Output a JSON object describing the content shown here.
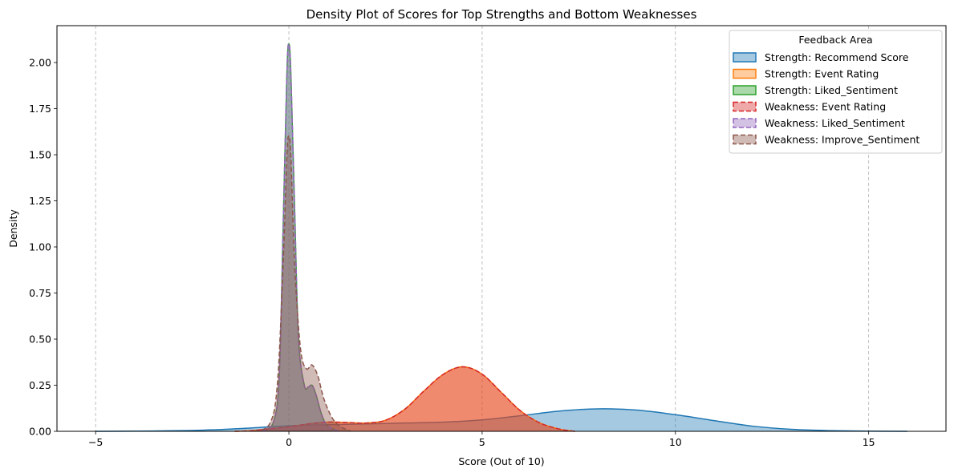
{
  "chart_data": {
    "type": "area",
    "title": "Density Plot of Scores for Top Strengths and Bottom Weaknesses",
    "xlabel": "Score (Out of 10)",
    "ylabel": "Density",
    "xlim": [
      -6,
      17
    ],
    "ylim": [
      0,
      2.2
    ],
    "xticks": [
      -5,
      0,
      5,
      10,
      15
    ],
    "yticks": [
      0.0,
      0.25,
      0.5,
      0.75,
      1.0,
      1.25,
      1.5,
      1.75,
      2.0
    ],
    "xtick_labels": [
      "−5",
      "0",
      "5",
      "10",
      "15"
    ],
    "ytick_labels": [
      "0.00",
      "0.25",
      "0.50",
      "0.75",
      "1.00",
      "1.25",
      "1.50",
      "1.75",
      "2.00"
    ],
    "grid": "x-dashed",
    "legend": {
      "title": "Feedback Area",
      "position": "top-right"
    },
    "series": [
      {
        "name": "Strength: Recommend Score",
        "color": "#1f77b4",
        "dashed": false,
        "x": [
          -5,
          -4,
          -3,
          -2,
          -1,
          0,
          1,
          2,
          3,
          4,
          5,
          6,
          7,
          8,
          9,
          10,
          11,
          12,
          13,
          14,
          15,
          16
        ],
        "y": [
          0.0,
          0.001,
          0.003,
          0.008,
          0.018,
          0.03,
          0.036,
          0.04,
          0.045,
          0.05,
          0.062,
          0.085,
          0.11,
          0.122,
          0.115,
          0.09,
          0.058,
          0.028,
          0.011,
          0.004,
          0.001,
          0.0
        ]
      },
      {
        "name": "Strength: Event Rating",
        "color": "#ff7f0e",
        "dashed": false,
        "x": [
          -1.4,
          -1,
          0,
          0.5,
          1,
          1.5,
          2,
          2.5,
          3,
          3.5,
          4,
          4.5,
          5,
          5.5,
          6,
          6.5,
          7,
          7.4
        ],
        "y": [
          0.0,
          0.003,
          0.025,
          0.04,
          0.05,
          0.048,
          0.045,
          0.06,
          0.12,
          0.22,
          0.31,
          0.35,
          0.31,
          0.21,
          0.11,
          0.045,
          0.012,
          0.0
        ]
      },
      {
        "name": "Strength: Liked_Sentiment",
        "color": "#2ca02c",
        "dashed": false,
        "x": [
          -0.7,
          -0.4,
          -0.25,
          -0.15,
          -0.05,
          0,
          0.05,
          0.15,
          0.25,
          0.4,
          0.5,
          0.6,
          0.7,
          0.85,
          1.0,
          1.3
        ],
        "y": [
          0.0,
          0.05,
          0.3,
          1.1,
          1.95,
          2.1,
          1.95,
          1.2,
          0.5,
          0.25,
          0.24,
          0.25,
          0.2,
          0.09,
          0.03,
          0.0
        ]
      },
      {
        "name": "Weakness: Event Rating",
        "color": "#d62728",
        "dashed": true,
        "x": [
          -1.4,
          -1,
          0,
          0.5,
          1,
          1.5,
          2,
          2.5,
          3,
          3.5,
          4,
          4.5,
          5,
          5.5,
          6,
          6.5,
          7,
          7.4
        ],
        "y": [
          0.0,
          0.003,
          0.025,
          0.04,
          0.05,
          0.048,
          0.045,
          0.06,
          0.12,
          0.22,
          0.31,
          0.35,
          0.31,
          0.21,
          0.11,
          0.045,
          0.012,
          0.0
        ]
      },
      {
        "name": "Weakness: Liked_Sentiment",
        "color": "#9467bd",
        "dashed": true,
        "x": [
          -0.7,
          -0.4,
          -0.25,
          -0.15,
          -0.05,
          0,
          0.05,
          0.15,
          0.25,
          0.4,
          0.5,
          0.6,
          0.7,
          0.85,
          1.0,
          1.3
        ],
        "y": [
          0.0,
          0.05,
          0.3,
          1.1,
          1.95,
          2.1,
          1.95,
          1.2,
          0.5,
          0.25,
          0.24,
          0.25,
          0.2,
          0.09,
          0.03,
          0.0
        ]
      },
      {
        "name": "Weakness: Improve_Sentiment",
        "color": "#8c564b",
        "dashed": true,
        "x": [
          -0.9,
          -0.5,
          -0.3,
          -0.15,
          -0.05,
          0,
          0.05,
          0.15,
          0.3,
          0.45,
          0.6,
          0.75,
          0.9,
          1.1,
          1.3,
          1.6
        ],
        "y": [
          0.0,
          0.04,
          0.25,
          0.9,
          1.5,
          1.6,
          1.5,
          0.9,
          0.45,
          0.34,
          0.36,
          0.3,
          0.18,
          0.08,
          0.03,
          0.0
        ]
      }
    ]
  }
}
